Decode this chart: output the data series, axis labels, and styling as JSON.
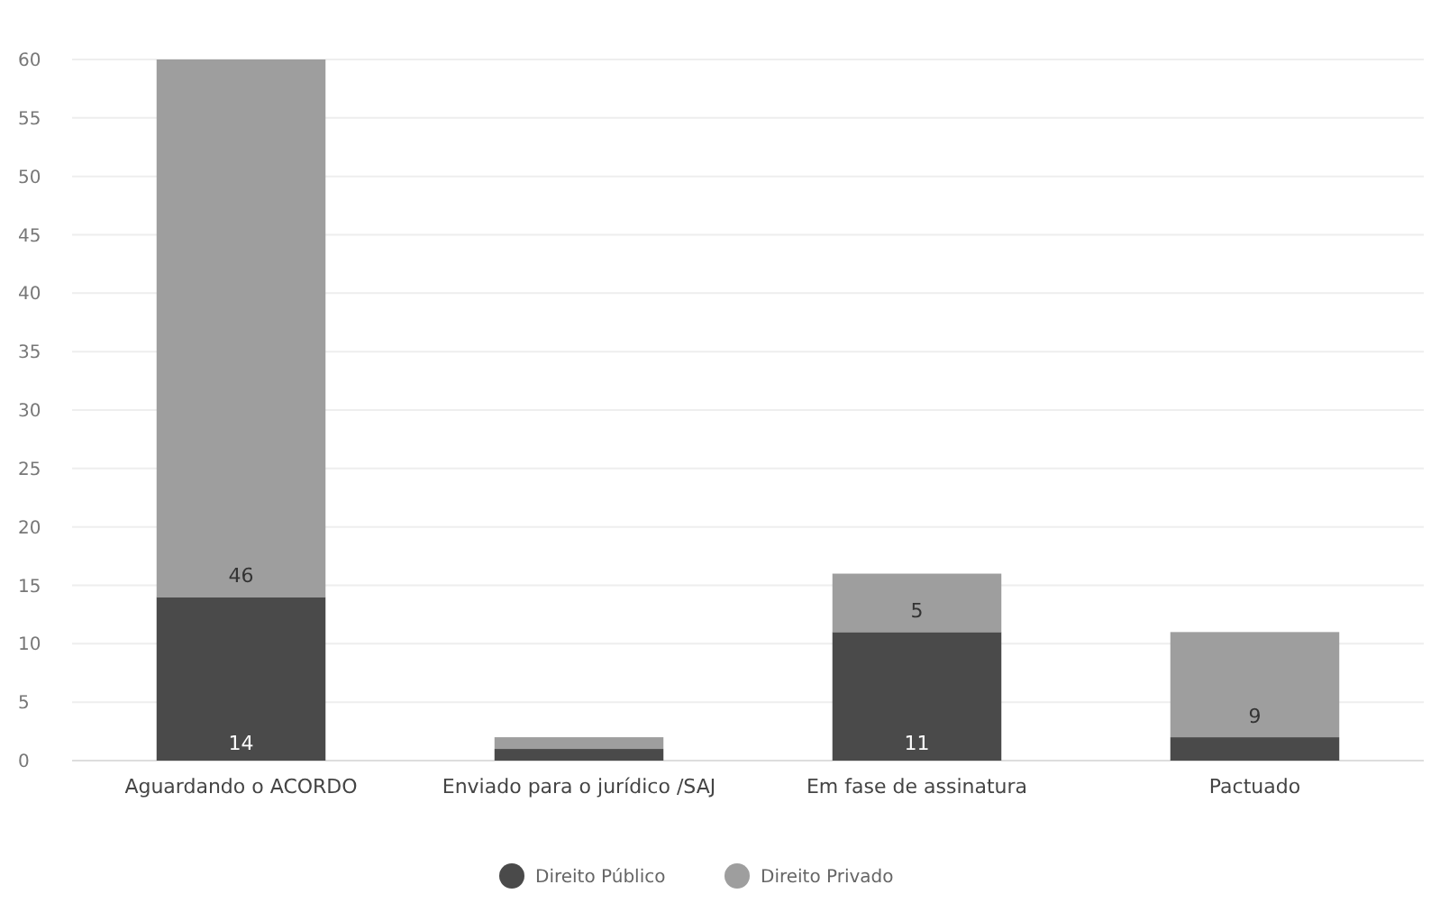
{
  "chart_data": {
    "type": "bar",
    "stacked": true,
    "categories": [
      "Aguardando o ACORDO",
      "Enviado para o jurídico /SAJ",
      "Em fase de assinatura",
      "Pactuado"
    ],
    "series": [
      {
        "name": "Direito Público",
        "color": "#4a4a4a",
        "values": [
          14,
          1,
          11,
          2
        ],
        "value_labels": [
          "14",
          null,
          "11",
          null
        ]
      },
      {
        "name": "Direito Privado",
        "color": "#9e9e9e",
        "values": [
          46,
          1,
          5,
          9
        ],
        "value_labels": [
          "46",
          null,
          "5",
          "9"
        ]
      }
    ],
    "ylim": [
      0,
      60
    ],
    "yticks": [
      0,
      5,
      10,
      15,
      20,
      25,
      30,
      35,
      40,
      45,
      50,
      55,
      60
    ],
    "grid": "y",
    "legend": "bottom"
  }
}
